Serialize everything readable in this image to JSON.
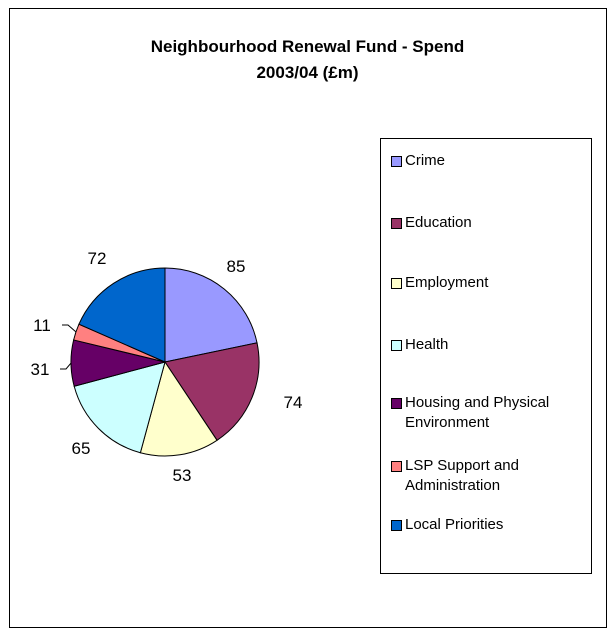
{
  "chart_data": {
    "type": "pie",
    "title_line1": "Neighbourhood Renewal Fund - Spend",
    "title_line2": "2003/04 (£m)",
    "legend_position": "right",
    "slices": [
      {
        "label": "Crime",
        "value": 85,
        "color": "#9999FF"
      },
      {
        "label": "Education",
        "value": 74,
        "color": "#993366"
      },
      {
        "label": "Employment",
        "value": 53,
        "color": "#FFFFCC"
      },
      {
        "label": "Health",
        "value": 65,
        "color": "#CCFFFF"
      },
      {
        "label": "Housing and Physical Environment",
        "value": 31,
        "color": "#660066"
      },
      {
        "label": "LSP Support and Administration",
        "value": 11,
        "color": "#FF8080"
      },
      {
        "label": "Local Priorities",
        "value": 72,
        "color": "#0066CC"
      }
    ]
  }
}
